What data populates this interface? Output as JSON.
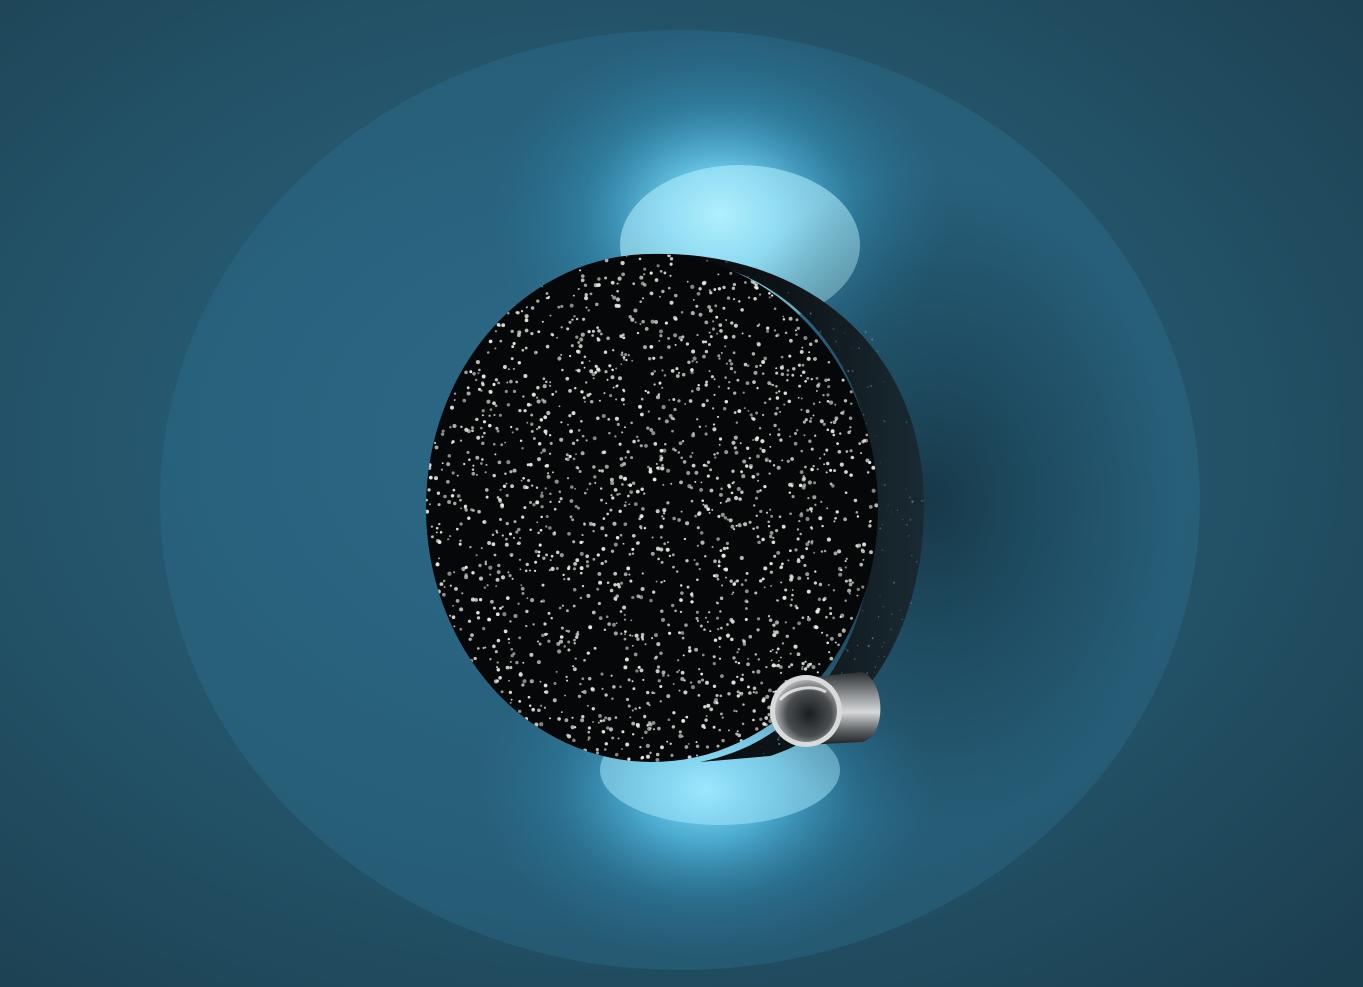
{
  "scene": {
    "subject": "perforated-round-wall-lamp",
    "colors": {
      "wall": "#24546a",
      "wall_dark": "#1e4457",
      "glow_core": "#8ee4ff",
      "glow_mid": "#3fb4e0",
      "disc": "#050708",
      "rim": "#0c1114",
      "perforation": "#e8e8e2",
      "cylinder_metal": "#c9c9c9"
    }
  }
}
